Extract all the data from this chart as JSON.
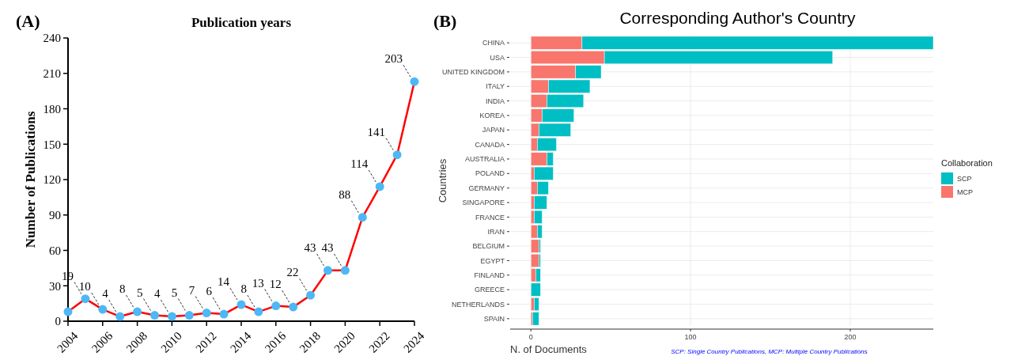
{
  "chart_data": [
    {
      "type": "line",
      "title": "Publication years",
      "ylabel": "Number of Publications",
      "annotations": [
        "(A)"
      ],
      "x": [
        2004,
        2005,
        2006,
        2007,
        2008,
        2009,
        2010,
        2011,
        2012,
        2013,
        2014,
        2015,
        2016,
        2017,
        2018,
        2019,
        2020,
        2021,
        2022,
        2023,
        2024
      ],
      "series": [
        {
          "color": "#ff0000",
          "values": [
            8,
            19,
            10,
            4,
            8,
            5,
            4,
            5,
            7,
            6,
            14,
            8,
            13,
            12,
            22,
            43,
            43,
            88,
            114,
            141,
            203
          ],
          "value_labels": [
            null,
            "19",
            "10",
            "4",
            "8",
            "5",
            "4",
            "5",
            "7",
            "6",
            "14",
            "8",
            "13",
            "12",
            "22",
            "43",
            "43",
            "88",
            "114",
            "141",
            "203"
          ]
        }
      ],
      "xlim": [
        2004,
        2024
      ],
      "xticks": [
        2004,
        2006,
        2008,
        2010,
        2012,
        2014,
        2016,
        2018,
        2020,
        2022,
        2024
      ],
      "ylim": [
        0,
        240
      ],
      "yticks": [
        0,
        30,
        60,
        90,
        120,
        150,
        180,
        210,
        240
      ],
      "marker": "circle",
      "line_style": "solid",
      "grid": false
    },
    {
      "type": "bar",
      "orientation": "horizontal",
      "stacked": true,
      "title": "Corresponding Author's Country",
      "xlabel": "N. of Documents",
      "ylabel": "Countries",
      "legend_title": "Collaboration",
      "annotations": [
        "(B)",
        "SCP: Single Country Publications, MCP: Multiple Country Publications"
      ],
      "categories": [
        "CHINA",
        "USA",
        "UNITED KINGDOM",
        "ITALY",
        "INDIA",
        "KOREA",
        "JAPAN",
        "CANADA",
        "AUSTRALIA",
        "POLAND",
        "GERMANY",
        "SINGAPORE",
        "FRANCE",
        "IRAN",
        "BELGIUM",
        "EGYPT",
        "FINLAND",
        "GREECE",
        "NETHERLANDS",
        "SPAIN"
      ],
      "series": [
        {
          "name": "MCP",
          "color": "#f8766d",
          "values": [
            32,
            46,
            28,
            11,
            10,
            7,
            5,
            4,
            10,
            2,
            4,
            2,
            2,
            4,
            5,
            5,
            3,
            0,
            2,
            1
          ]
        },
        {
          "name": "SCP",
          "color": "#00bfc4",
          "values": [
            220,
            143,
            16,
            26,
            23,
            20,
            20,
            12,
            4,
            12,
            7,
            8,
            5,
            3,
            1,
            1,
            3,
            6,
            3,
            4
          ]
        }
      ],
      "xlim": [
        -13,
        252
      ],
      "xticks": [
        0,
        100,
        200
      ],
      "grid": true,
      "legend": "right"
    }
  ]
}
